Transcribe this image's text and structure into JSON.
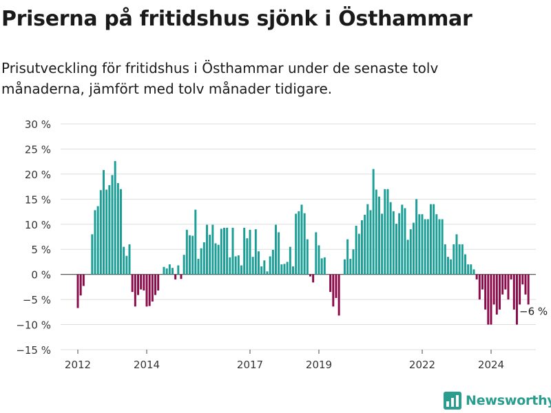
{
  "title": "Priserna på fritidshus sjönk i Östhammar",
  "subtitle": "Prisutveckling för fritidshus i Östhammar under de senaste tolv månaderna, jämfört med tolv månader tidigare.",
  "brand": "Newsworthy",
  "colors": {
    "positive": "#1a9e96",
    "negative": "#8b0a4a",
    "grid": "#dddddd",
    "brand": "#2a9d8f"
  },
  "chart_data": {
    "type": "bar",
    "ylim": [
      -15,
      30
    ],
    "yticks": [
      -15,
      -10,
      -5,
      0,
      5,
      10,
      15,
      20,
      25,
      30
    ],
    "ytick_labels": [
      "−15 %",
      "−10 %",
      "−5 %",
      "0 %",
      "5 %",
      "10 %",
      "15 %",
      "20 %",
      "25 %",
      "30 %"
    ],
    "xlim": [
      2011.5,
      2025.3
    ],
    "xticks": [
      2012,
      2014,
      2017,
      2019,
      2022,
      2024
    ],
    "xtick_labels": [
      "2012",
      "2014",
      "2017",
      "2019",
      "2022",
      "2024"
    ],
    "annotation": {
      "text": "−6 %",
      "x": 2024.88,
      "y": -6
    },
    "series": [
      {
        "start": 2012.0,
        "step": 0.08333,
        "values": [
          -6.7,
          -4.2,
          -2.3,
          0,
          0,
          8.0,
          12.8,
          13.6,
          16.8,
          20.8,
          16.9,
          17.8,
          19.8,
          22.6,
          18.2,
          17.0,
          5.5,
          3.7,
          6.0,
          -3.5,
          -6.4,
          -4.1,
          -3.0,
          -3.2,
          -6.4,
          -6.3,
          -5.4,
          -4.1,
          -3.2,
          0,
          1.5,
          1.2,
          2.0,
          1.3,
          -1.0,
          1.8,
          -0.9,
          3.9,
          8.9,
          7.8,
          7.7,
          12.9,
          3.1,
          5.2,
          6.4,
          9.9,
          7.9,
          9.9,
          6.2,
          5.9,
          9.1,
          9.3,
          9.3,
          3.4,
          9.3,
          3.6,
          3.8,
          1.8,
          9.3,
          7.2,
          8.9,
          3.5,
          9.0,
          4.6,
          1.6,
          2.8,
          0.6,
          3.6,
          4.9,
          9.9,
          8.4,
          2.0,
          2.1,
          2.5,
          5.5,
          1.6,
          12.1,
          12.6,
          13.9,
          12.2,
          7.0,
          -0.4,
          -1.6,
          8.4,
          5.8,
          3.2,
          3.4,
          0,
          -3.5,
          -6.4,
          -4.7,
          -8.2,
          0,
          3.0,
          7.0,
          3.1,
          5.0,
          9.7,
          8.1,
          10.8,
          11.9,
          14.0,
          12.8,
          21.0,
          16.9,
          15.5,
          12.1,
          17.0,
          17.0,
          14.4,
          12.6,
          10.1,
          12.2,
          13.9,
          13.2,
          6.9,
          9.0,
          10.3,
          15.0,
          12.0,
          12.0,
          11.0,
          11.0,
          14.0,
          14.0,
          12.0,
          11.0,
          11.0,
          6.0,
          3.5,
          3.0,
          6.0,
          8.0,
          6.0,
          6.0,
          4.0,
          2.0,
          2.0,
          1.0,
          -1.0,
          -5.0,
          -3.0,
          -7.0,
          -10.0,
          -10.0,
          -6.0,
          -8.0,
          -7.0,
          -4.0,
          -3.0,
          -5.0,
          -1.0,
          -7.0,
          -10.0,
          -6.0,
          -2.0,
          -4.0,
          -6.0
        ]
      }
    ]
  }
}
